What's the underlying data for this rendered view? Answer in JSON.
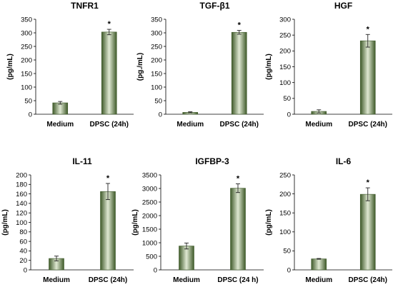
{
  "figure": {
    "bar_color_dark": "#3f5a2a",
    "bar_color_light": "#dfe8d2",
    "category_labels_note": "per chart"
  },
  "chart_data": [
    {
      "type": "bar",
      "title": "TNFR1",
      "ylabel": "(pg/mL)",
      "categories": [
        "Medium",
        "DPSC (24h)"
      ],
      "values": [
        42,
        303
      ],
      "errors": [
        5,
        10
      ],
      "annotations": [
        "",
        "*"
      ],
      "ylim": [
        0,
        350
      ],
      "yticks": [
        0,
        50,
        100,
        150,
        200,
        250,
        300,
        350
      ]
    },
    {
      "type": "bar",
      "title": "TGF-β1",
      "ylabel": "(pg./mL)",
      "categories": [
        "Medium",
        "DPSC (24h)"
      ],
      "values": [
        7,
        302
      ],
      "errors": [
        2,
        7
      ],
      "annotations": [
        "",
        "*"
      ],
      "ylim": [
        0,
        350
      ],
      "yticks": [
        0,
        50,
        100,
        150,
        200,
        250,
        300,
        350
      ]
    },
    {
      "type": "bar",
      "title": "HGF",
      "ylabel": "(pg/mL)",
      "categories": [
        "Medium",
        "DPSC (24h)"
      ],
      "values": [
        9,
        232
      ],
      "errors": [
        5,
        20
      ],
      "annotations": [
        "",
        "*"
      ],
      "ylim": [
        0,
        300
      ],
      "yticks": [
        0,
        50,
        100,
        150,
        200,
        250,
        300
      ]
    },
    {
      "type": "bar",
      "title": "IL-11",
      "ylabel": "(pg/mL)",
      "categories": [
        "Medium",
        "DPSC (24h)"
      ],
      "values": [
        24,
        165
      ],
      "errors": [
        5,
        17
      ],
      "annotations": [
        "",
        "*"
      ],
      "ylim": [
        0,
        200
      ],
      "yticks": [
        0,
        20,
        40,
        60,
        80,
        100,
        120,
        140,
        160,
        180,
        200
      ]
    },
    {
      "type": "bar",
      "title": "IGFBP-3",
      "ylabel": "(pg/mL)",
      "categories": [
        "Medium",
        "DPSC (24 h)"
      ],
      "values": [
        880,
        3010
      ],
      "errors": [
        110,
        160
      ],
      "annotations": [
        "",
        "*"
      ],
      "ylim": [
        0,
        3500
      ],
      "yticks": [
        0,
        500,
        1000,
        1500,
        2000,
        2500,
        3000,
        3500
      ]
    },
    {
      "type": "bar",
      "title": "IL-6",
      "ylabel": "(pg/mL)",
      "categories": [
        "Medium",
        "DPSC (24h)"
      ],
      "values": [
        29,
        199
      ],
      "errors": [
        1,
        17
      ],
      "annotations": [
        "",
        "*"
      ],
      "ylim": [
        0,
        250
      ],
      "yticks": [
        0,
        50,
        100,
        150,
        200,
        250
      ]
    }
  ]
}
